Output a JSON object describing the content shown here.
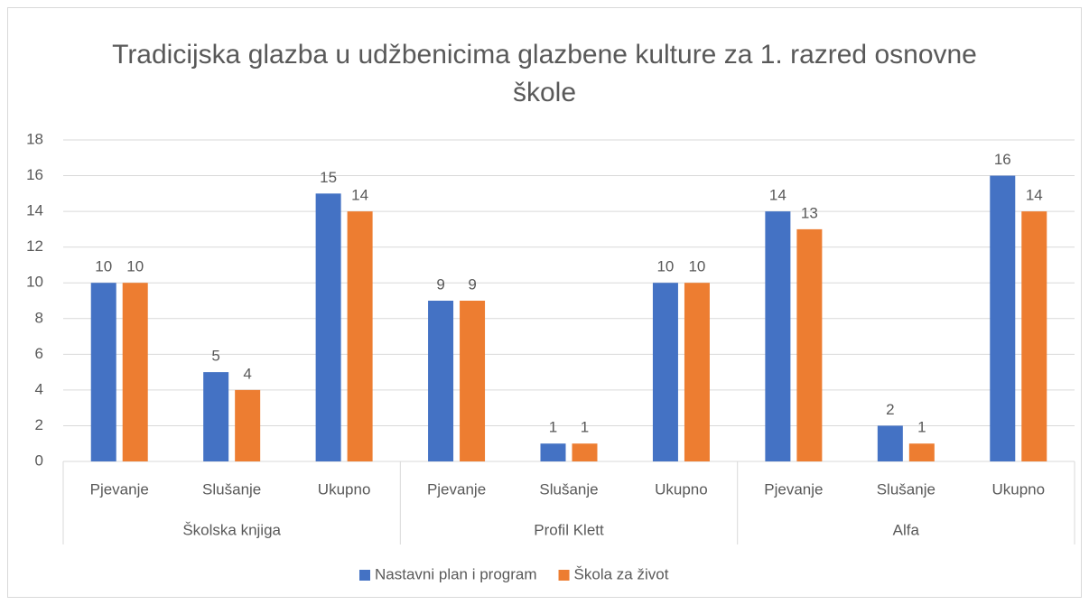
{
  "chart_data": {
    "type": "bar",
    "title": "Tradicijska glazba u udžbenicima glazbene kulture za 1. razred osnovne škole",
    "groups": [
      {
        "name": "Školska knjiga",
        "categories": [
          "Pjevanje",
          "Slušanje",
          "Ukupno"
        ]
      },
      {
        "name": "Profil Klett",
        "categories": [
          "Pjevanje",
          "Slušanje",
          "Ukupno"
        ]
      },
      {
        "name": "Alfa",
        "categories": [
          "Pjevanje",
          "Slušanje",
          "Ukupno"
        ]
      }
    ],
    "series": [
      {
        "name": "Nastavni plan i program",
        "color": "#4472c4",
        "values": [
          10,
          5,
          15,
          9,
          1,
          10,
          14,
          2,
          16
        ]
      },
      {
        "name": "Škola za život",
        "color": "#ed7d31",
        "values": [
          10,
          4,
          14,
          9,
          1,
          10,
          13,
          1,
          14
        ]
      }
    ],
    "ylim": [
      0,
      18
    ],
    "yticks": [
      0,
      2,
      4,
      6,
      8,
      10,
      12,
      14,
      16,
      18
    ],
    "grid": true,
    "legend": "bottom"
  }
}
